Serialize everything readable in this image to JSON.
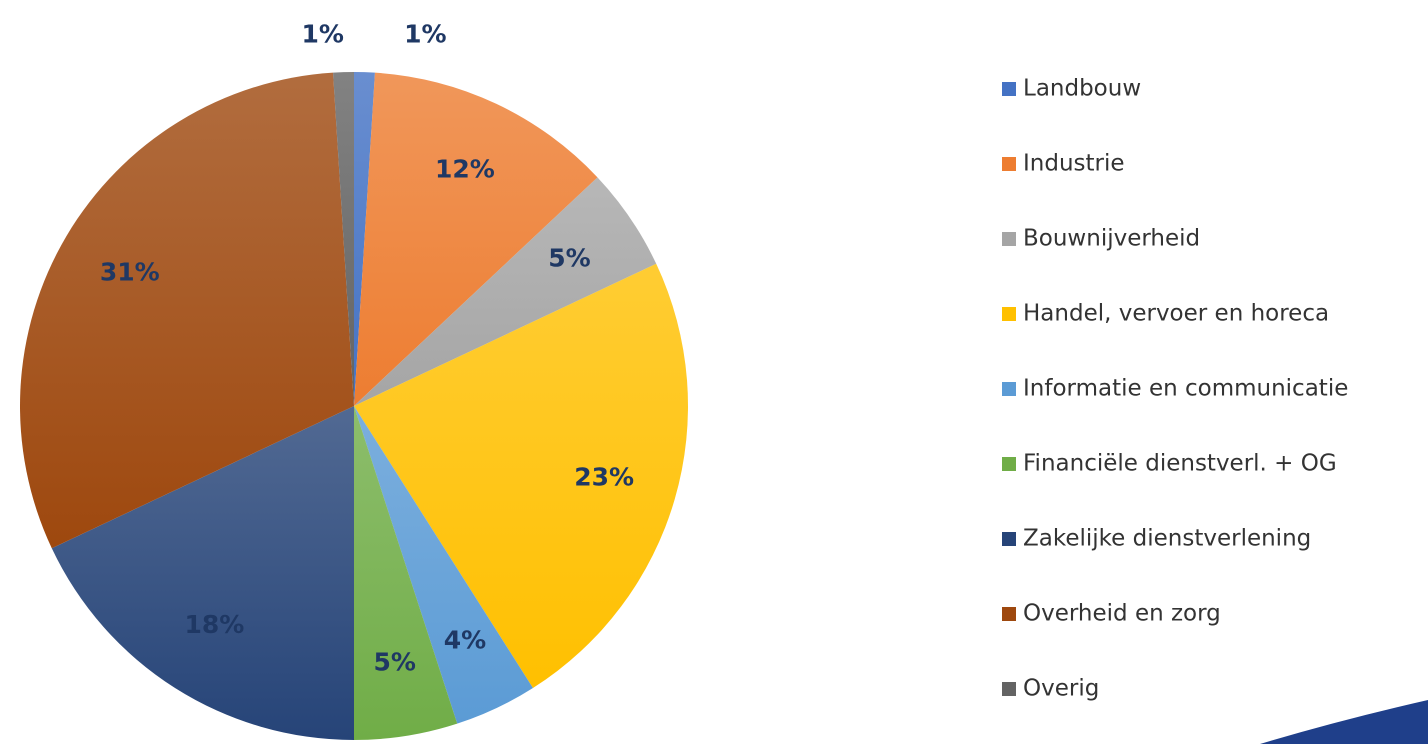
{
  "chart_data": {
    "type": "pie",
    "categories": [
      "Landbouw",
      "Industrie",
      "Bouwnijverheid",
      "Handel, vervoer en horeca",
      "Informatie en communicatie",
      "Financiële dienstverl. + OG",
      "Zakelijke dienstverlening",
      "Overheid en zorg",
      "Overig"
    ],
    "values": [
      1,
      12,
      5,
      23,
      4,
      5,
      18,
      31,
      1
    ],
    "value_labels": [
      "1%",
      "12%",
      "5%",
      "23%",
      "4%",
      "5%",
      "18%",
      "31%",
      "1%"
    ],
    "colors": [
      "#4472c4",
      "#ed7d31",
      "#a5a5a5",
      "#ffc000",
      "#5b9bd5",
      "#70ad47",
      "#264478",
      "#9e480e",
      "#636363"
    ],
    "legend": "right"
  }
}
